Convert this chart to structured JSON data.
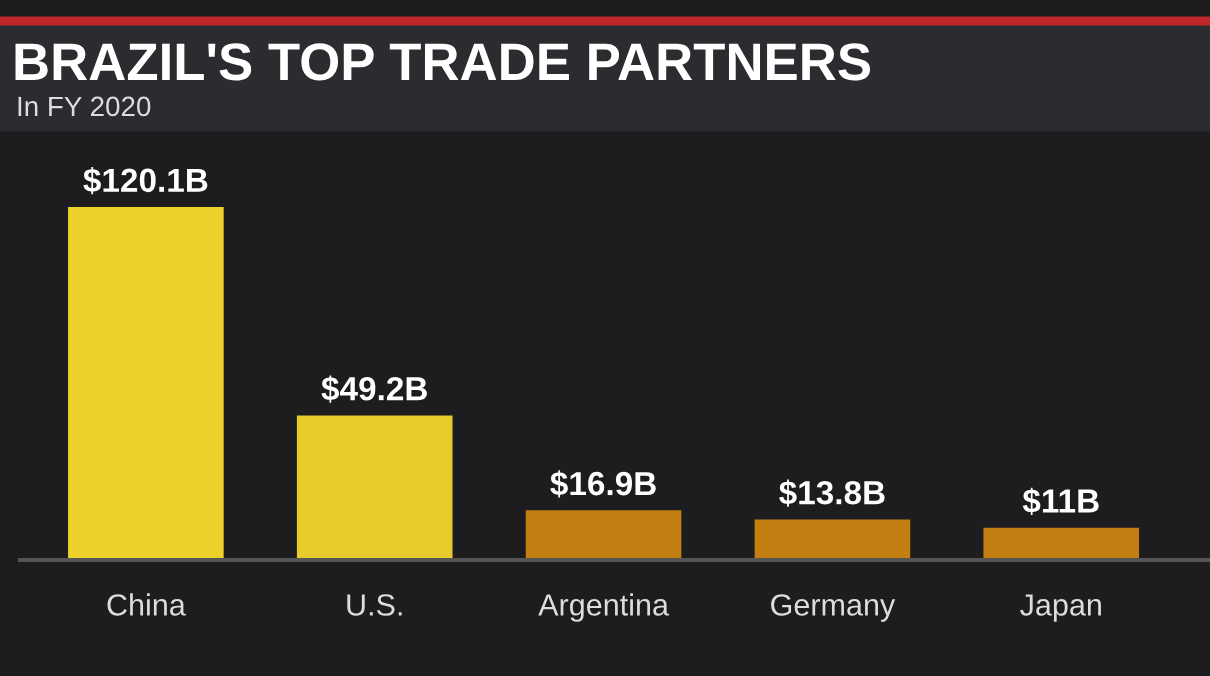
{
  "chart_data": {
    "type": "bar",
    "title": "BRAZIL'S TOP TRADE PARTNERS",
    "subtitle": "In FY 2020",
    "categories": [
      "China",
      "U.S.",
      "Argentina",
      "Germany",
      "Japan"
    ],
    "values": [
      120.1,
      49.2,
      16.9,
      13.8,
      11
    ],
    "colors": [
      "#ecd22a",
      "#e8cc2c",
      "#c47f12",
      "#c47f12",
      "#c47f12"
    ],
    "value_labels": [
      "$120.1B",
      "$49.2B",
      "$16.9B",
      "$13.8B",
      "$11B"
    ],
    "legend": false
  }
}
